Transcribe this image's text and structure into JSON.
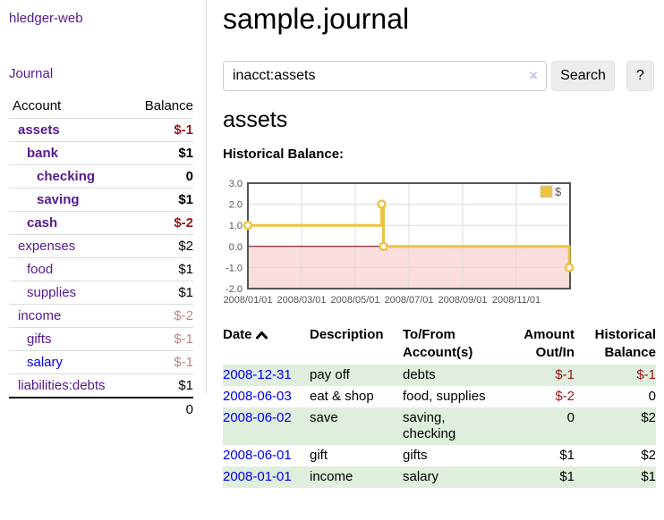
{
  "sidebar": {
    "brand": "hledger-web",
    "nav": [
      {
        "label": "Journal"
      }
    ],
    "accounts_table": {
      "headers": {
        "account": "Account",
        "balance": "Balance"
      },
      "rows": [
        {
          "account": "assets",
          "balance": "$-1",
          "level": 1,
          "bold": true,
          "balance_style": "negative",
          "link_color": "purple"
        },
        {
          "account": "bank",
          "balance": "$1",
          "level": 2,
          "bold": true,
          "balance_style": "normal",
          "link_color": "purple"
        },
        {
          "account": "checking",
          "balance": "0",
          "level": 3,
          "bold": true,
          "balance_style": "normal",
          "link_color": "purple"
        },
        {
          "account": "saving",
          "balance": "$1",
          "level": 3,
          "bold": true,
          "balance_style": "normal",
          "link_color": "purple"
        },
        {
          "account": "cash",
          "balance": "$-2",
          "level": 2,
          "bold": true,
          "balance_style": "negative",
          "link_color": "purple"
        },
        {
          "account": "expenses",
          "balance": "$2",
          "level": 1,
          "bold": false,
          "balance_style": "normal",
          "link_color": "purple"
        },
        {
          "account": "food",
          "balance": "$1",
          "level": 2,
          "bold": false,
          "balance_style": "normal",
          "link_color": "purple"
        },
        {
          "account": "supplies",
          "balance": "$1",
          "level": 2,
          "bold": false,
          "balance_style": "normal",
          "link_color": "purple"
        },
        {
          "account": "income",
          "balance": "$-2",
          "level": 1,
          "bold": false,
          "balance_style": "faded",
          "link_color": "purple"
        },
        {
          "account": "gifts",
          "balance": "$-1",
          "level": 2,
          "bold": false,
          "balance_style": "faded",
          "link_color": "purple"
        },
        {
          "account": "salary",
          "balance": "$-1",
          "level": 2,
          "bold": false,
          "balance_style": "faded",
          "link_color": "blue"
        },
        {
          "account": "liabilities:debts",
          "balance": "$1",
          "level": 1,
          "bold": false,
          "balance_style": "normal",
          "link_color": "purple"
        }
      ],
      "total": "0"
    }
  },
  "header": {
    "title": "sample.journal"
  },
  "search": {
    "value": "inacct:assets",
    "clear_icon": "×",
    "button": "Search",
    "help_button": "?"
  },
  "account_page": {
    "title": "assets",
    "chart_label": "Historical Balance:"
  },
  "chart_data": {
    "type": "line",
    "step": true,
    "title": "Historical Balance",
    "series": [
      {
        "name": "$",
        "color": "#edc240",
        "points": [
          [
            "2008-01-01",
            1
          ],
          [
            "2008-06-01",
            2
          ],
          [
            "2008-06-03",
            0
          ],
          [
            "2008-12-31",
            -1
          ]
        ]
      }
    ],
    "x_range": [
      "2008-01-01",
      "2009-01-01"
    ],
    "y_range": [
      -2,
      3
    ],
    "y_ticks": [
      "3.0",
      "2.0",
      "1.0",
      "0.0",
      "-1.0",
      "-2.0"
    ],
    "x_ticks": [
      "2008/01/01",
      "2008/03/01",
      "2008/05/01",
      "2008/07/01",
      "2008/09/01",
      "2008/11/01"
    ],
    "grid": true,
    "negative_region_color": "#fadddd",
    "zero_line_color": "#7a0000",
    "border_color": "#545454",
    "gridline_color": "#dcdcdc",
    "legend": [
      {
        "label": "$",
        "color": "#edc240"
      }
    ],
    "legend_position": "top-right"
  },
  "register": {
    "headers": {
      "date": "Date",
      "description": "Description",
      "accounts": "To/From Account(s)",
      "amount": "Amount Out/In",
      "balance": "Historical Balance"
    },
    "sort": {
      "column": "date",
      "direction": "asc"
    },
    "rows": [
      {
        "date": "2008-12-31",
        "description": "pay off",
        "accounts": "debts",
        "amount": "$-1",
        "balance": "$-1",
        "amount_negative": true,
        "balance_negative": true,
        "shaded": true
      },
      {
        "date": "2008-06-03",
        "description": "eat & shop",
        "accounts": "food, supplies",
        "amount": "$-2",
        "balance": "0",
        "amount_negative": true,
        "balance_negative": false,
        "shaded": false
      },
      {
        "date": "2008-06-02",
        "description": "save",
        "accounts": "saving, checking",
        "amount": "0",
        "balance": "$2",
        "amount_negative": false,
        "balance_negative": false,
        "shaded": true
      },
      {
        "date": "2008-06-01",
        "description": "gift",
        "accounts": "gifts",
        "amount": "$1",
        "balance": "$2",
        "amount_negative": false,
        "balance_negative": false,
        "shaded": false
      },
      {
        "date": "2008-01-01",
        "description": "income",
        "accounts": "salary",
        "amount": "$1",
        "balance": "$1",
        "amount_negative": false,
        "balance_negative": false,
        "shaded": true
      }
    ]
  }
}
